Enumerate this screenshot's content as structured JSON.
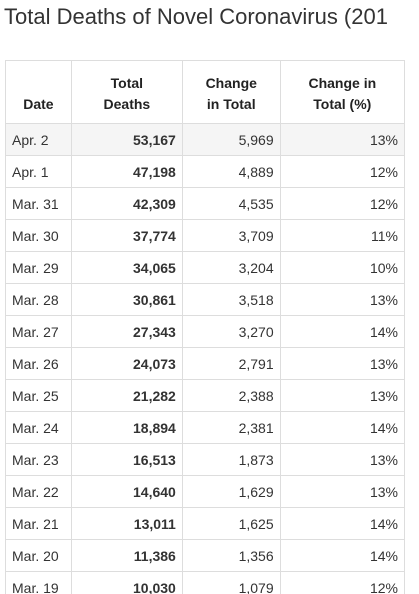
{
  "title": "Total Deaths of Novel Coronavirus (201",
  "table": {
    "headers": [
      "Date",
      "Total Deaths",
      "Change in Total",
      "Change in Total (%)"
    ],
    "rows": [
      [
        "Apr. 2",
        "53,167",
        "5,969",
        "13%"
      ],
      [
        "Apr. 1",
        "47,198",
        "4,889",
        "12%"
      ],
      [
        "Mar. 31",
        "42,309",
        "4,535",
        "12%"
      ],
      [
        "Mar. 30",
        "37,774",
        "3,709",
        "11%"
      ],
      [
        "Mar. 29",
        "34,065",
        "3,204",
        "10%"
      ],
      [
        "Mar. 28",
        "30,861",
        "3,518",
        "13%"
      ],
      [
        "Mar. 27",
        "27,343",
        "3,270",
        "14%"
      ],
      [
        "Mar. 26",
        "24,073",
        "2,791",
        "13%"
      ],
      [
        "Mar. 25",
        "21,282",
        "2,388",
        "13%"
      ],
      [
        "Mar. 24",
        "18,894",
        "2,381",
        "14%"
      ],
      [
        "Mar. 23",
        "16,513",
        "1,873",
        "13%"
      ],
      [
        "Mar. 22",
        "14,640",
        "1,629",
        "13%"
      ],
      [
        "Mar. 21",
        "13,011",
        "1,625",
        "14%"
      ],
      [
        "Mar. 20",
        "11,386",
        "1,356",
        "14%"
      ],
      [
        "Mar. 19",
        "10,030",
        "1,079",
        "12%"
      ]
    ]
  }
}
